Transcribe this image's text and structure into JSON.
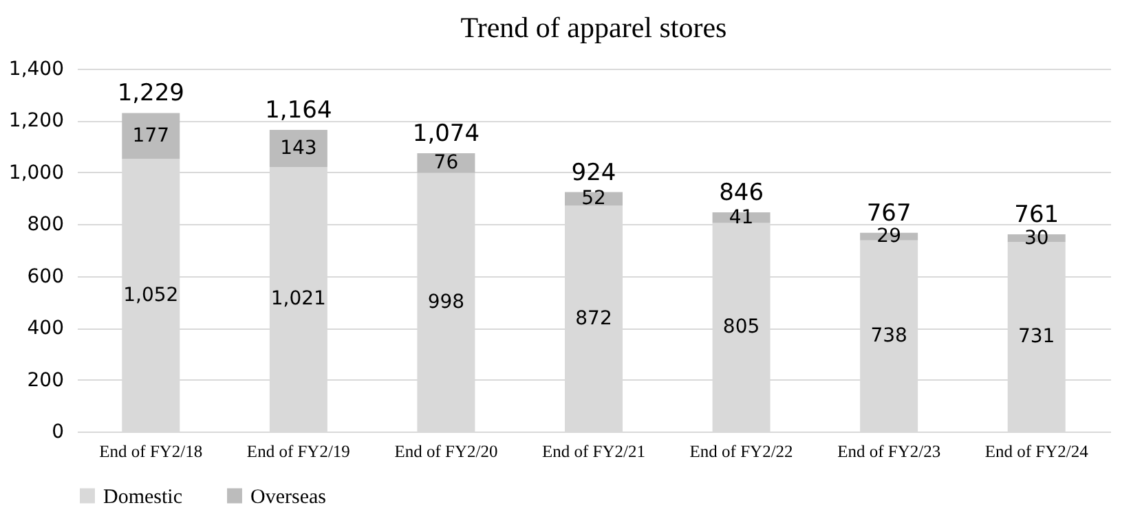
{
  "chart_data": {
    "type": "bar",
    "title": "Trend of apparel stores",
    "categories": [
      "End of FY2/18",
      "End of FY2/19",
      "End of FY2/20",
      "End of FY2/21",
      "End of FY2/22",
      "End of FY2/23",
      "End of FY2/24"
    ],
    "series": [
      {
        "name": "Domestic",
        "color": "#d9d9d9",
        "values": [
          1052,
          1021,
          998,
          872,
          805,
          738,
          731
        ],
        "value_labels": [
          "1,052",
          "1,021",
          "998",
          "872",
          "805",
          "738",
          "731"
        ]
      },
      {
        "name": "Overseas",
        "color": "#bcbcbc",
        "values": [
          177,
          143,
          76,
          52,
          41,
          29,
          30
        ],
        "value_labels": [
          "177",
          "143",
          "76",
          "52",
          "41",
          "29",
          "30"
        ]
      }
    ],
    "stacked": true,
    "totals": [
      "1,229",
      "1,164",
      "1,074",
      "924",
      "846",
      "767",
      "761"
    ],
    "ylim": [
      0,
      1400
    ],
    "yticks": [
      0,
      200,
      400,
      600,
      800,
      {
        "value": 1000,
        "label": "1,000"
      },
      {
        "value": 1200,
        "label": "1,200"
      },
      {
        "value": 1400,
        "label": "1,400"
      }
    ],
    "grid": "y",
    "legend": "bottom"
  }
}
